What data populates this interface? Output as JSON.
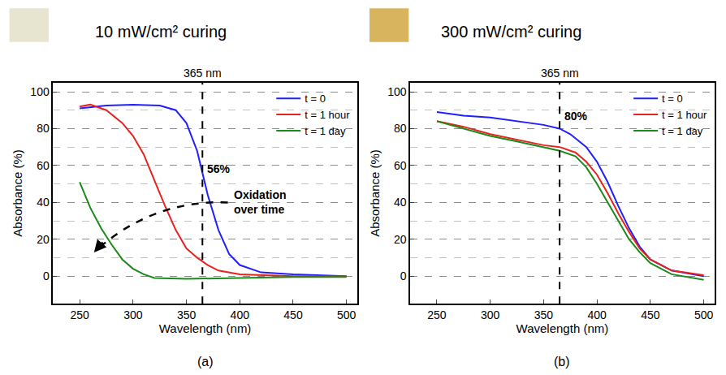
{
  "chart_data": [
    {
      "type": "line",
      "title": "10 mW/cm² curing",
      "panel_label": "(a)",
      "x_label": "Wavelength (nm)",
      "y_label": "Absorbance (%)",
      "xlim": [
        225,
        510
      ],
      "ylim": [
        -15,
        105
      ],
      "xticks": [
        250,
        300,
        350,
        400,
        450,
        500
      ],
      "yticks": [
        0,
        20,
        40,
        60,
        80,
        100
      ],
      "grid": true,
      "legend": "top right",
      "vline": {
        "x": 365,
        "label": "365 nm"
      },
      "annotations": [
        {
          "text": "56%",
          "x": 365,
          "y": 58
        },
        {
          "text": "Oxidation over time",
          "x": 390,
          "y": 40
        }
      ],
      "series": [
        {
          "name": "t = 0",
          "color": "#1f1fff",
          "x": [
            250,
            275,
            300,
            325,
            340,
            350,
            360,
            365,
            370,
            380,
            390,
            400,
            420,
            450,
            500
          ],
          "values": [
            91,
            92.5,
            93,
            92.5,
            90,
            83,
            68,
            56,
            44,
            25,
            12,
            6,
            2,
            1,
            0
          ]
        },
        {
          "name": "t = 1 hour",
          "color": "#e8221c",
          "x": [
            250,
            260,
            275,
            290,
            300,
            310,
            320,
            330,
            340,
            350,
            360,
            370,
            380,
            400,
            450,
            500
          ],
          "values": [
            92,
            93,
            90,
            83,
            76,
            66,
            52,
            38,
            25,
            15,
            10,
            6,
            3,
            1,
            0,
            0
          ]
        },
        {
          "name": "t = 1 day",
          "color": "#1a8a1a",
          "x": [
            250,
            260,
            270,
            280,
            290,
            300,
            310,
            320,
            350,
            400,
            450,
            500
          ],
          "values": [
            51,
            37,
            26,
            17,
            9,
            4,
            1,
            -1,
            -1.5,
            -1,
            -0.5,
            -0.5
          ]
        }
      ]
    },
    {
      "type": "line",
      "title": "300 mW/cm² curing",
      "panel_label": "(b)",
      "x_label": "Wavelength (nm)",
      "y_label": "Absorbance (%)",
      "xlim": [
        225,
        510
      ],
      "ylim": [
        -15,
        105
      ],
      "xticks": [
        250,
        300,
        350,
        400,
        450,
        500
      ],
      "yticks": [
        0,
        20,
        40,
        60,
        80,
        100
      ],
      "grid": true,
      "legend": "top right",
      "vline": {
        "x": 365,
        "label": "365 nm"
      },
      "annotations": [
        {
          "text": "80%",
          "x": 365,
          "y": 87
        }
      ],
      "series": [
        {
          "name": "t = 0",
          "color": "#1f1fff",
          "x": [
            250,
            275,
            300,
            325,
            350,
            365,
            375,
            390,
            400,
            410,
            420,
            430,
            440,
            450,
            470,
            500
          ],
          "values": [
            89,
            87,
            86,
            84,
            82,
            80,
            77,
            70,
            62,
            51,
            38,
            26,
            16,
            9,
            3,
            0
          ]
        },
        {
          "name": "t = 1 hour",
          "color": "#e8221c",
          "x": [
            250,
            275,
            300,
            325,
            350,
            365,
            380,
            390,
            400,
            410,
            420,
            430,
            440,
            450,
            470,
            500
          ],
          "values": [
            84,
            81,
            77,
            74,
            71,
            70,
            67,
            62,
            55,
            45,
            34,
            24,
            15,
            9,
            3,
            0.5
          ]
        },
        {
          "name": "t = 1 day",
          "color": "#1a8a1a",
          "x": [
            250,
            275,
            300,
            325,
            350,
            365,
            380,
            390,
            400,
            410,
            420,
            430,
            440,
            450,
            470,
            500
          ],
          "values": [
            84,
            80,
            76,
            73,
            70,
            68,
            65,
            59,
            50,
            40,
            30,
            20,
            13,
            7,
            1,
            -2
          ]
        }
      ]
    }
  ]
}
